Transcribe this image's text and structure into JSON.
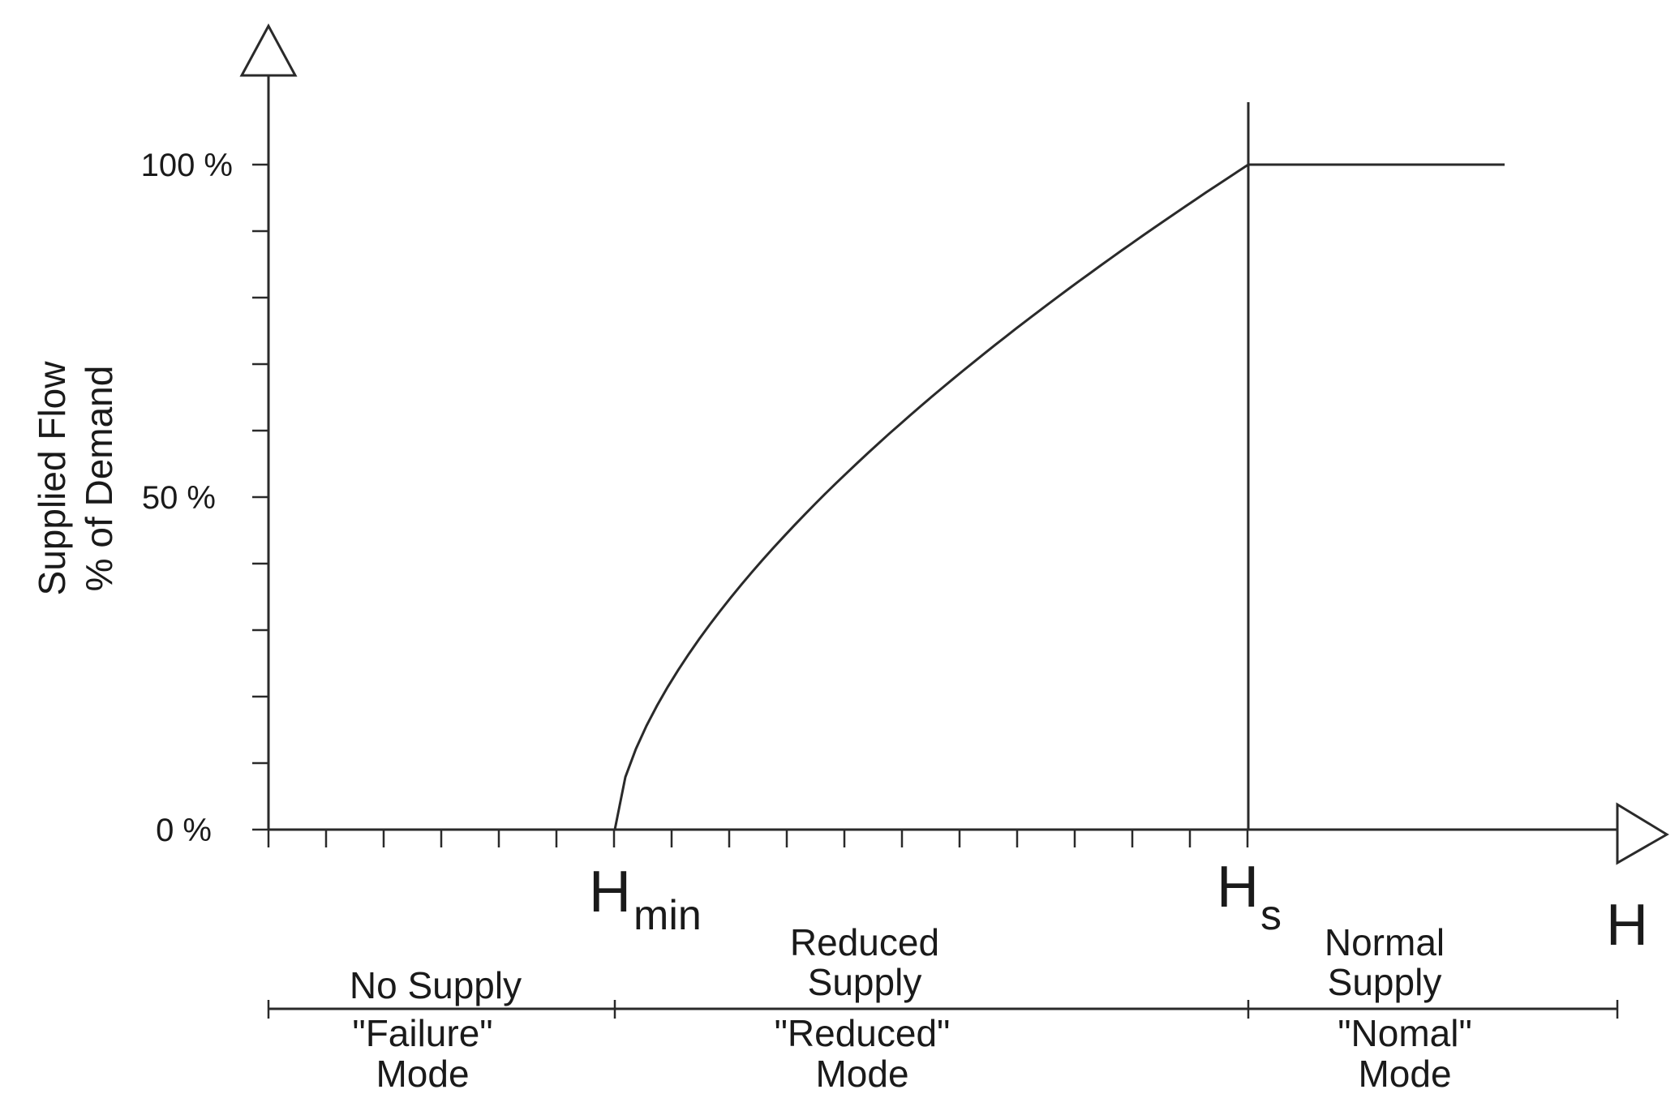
{
  "chart_data": {
    "type": "line",
    "ylabel_lines": [
      "Supplied Flow",
      "% of Demand"
    ],
    "y_ticks": [
      "100 %",
      "50 %",
      "0 %"
    ],
    "ylim": [
      0,
      100
    ],
    "x_axis_label": "H",
    "x_markers": [
      {
        "main": "H",
        "sub": "min"
      },
      {
        "main": "H",
        "sub": "s"
      }
    ],
    "series": [
      {
        "points": [
          {
            "x": "H_min",
            "y": 0
          },
          {
            "x": "H_s",
            "y": 100
          },
          {
            "x": "beyond H_s",
            "y": 100
          }
        ]
      }
    ],
    "zones": [
      {
        "supply": [
          "No Supply"
        ],
        "mode": [
          "\"Failure\"",
          "Mode"
        ]
      },
      {
        "supply": [
          "Reduced",
          "Supply"
        ],
        "mode": [
          "\"Reduced\"",
          "Mode"
        ]
      },
      {
        "supply": [
          "Normal",
          "Supply"
        ],
        "mode": [
          "\"Nomal\"",
          "Mode"
        ]
      }
    ]
  }
}
